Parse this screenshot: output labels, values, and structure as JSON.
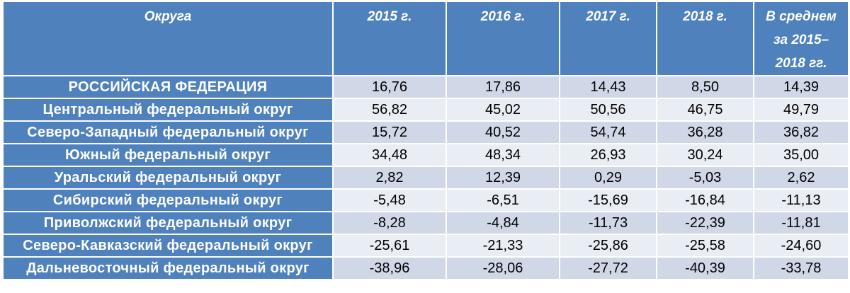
{
  "chart_data": {
    "type": "table",
    "columns": [
      "Округа",
      "2015 г.",
      "2016 г.",
      "2017 г.",
      "2018 г.",
      "В среднем за 2015–2018 гг."
    ],
    "rows": [
      {
        "region": "РОССИЙСКАЯ ФЕДЕРАЦИЯ",
        "values": [
          "16,76",
          "17,86",
          "14,43",
          "8,50",
          "14,39"
        ]
      },
      {
        "region": "Центральный федеральный округ",
        "values": [
          "56,82",
          "45,02",
          "50,56",
          "46,75",
          "49,79"
        ]
      },
      {
        "region": "Северо-Западный федеральный округ",
        "values": [
          "15,72",
          "40,52",
          "54,74",
          "36,28",
          "36,82"
        ]
      },
      {
        "region": "Южный федеральный округ",
        "values": [
          "34,48",
          "48,34",
          "26,93",
          "30,24",
          "35,00"
        ]
      },
      {
        "region": "Уральский федеральный округ",
        "values": [
          "2,82",
          "12,39",
          "0,29",
          "-5,03",
          "2,62"
        ]
      },
      {
        "region": "Сибирский федеральный округ",
        "values": [
          "-5,48",
          "-6,51",
          "-15,69",
          "-16,84",
          "-11,13"
        ]
      },
      {
        "region": "Приволжский федеральный округ",
        "values": [
          "-8,28",
          "-4,84",
          "-11,73",
          "-22,39",
          "-11,81"
        ]
      },
      {
        "region": "Северо-Кавказский федеральный округ",
        "values": [
          "-25,61",
          "-21,33",
          "-25,86",
          "-25,58",
          "-24,60"
        ]
      },
      {
        "region": "Дальневосточный федеральный округ",
        "values": [
          "-38,96",
          "-28,06",
          "-27,72",
          "-40,39",
          "-33,78"
        ]
      }
    ]
  },
  "colors": {
    "header_bg": "#4f81bd",
    "header_text": "#ffffff",
    "row_odd_bg": "#d0d8e8",
    "row_even_bg": "#e9edf4"
  }
}
